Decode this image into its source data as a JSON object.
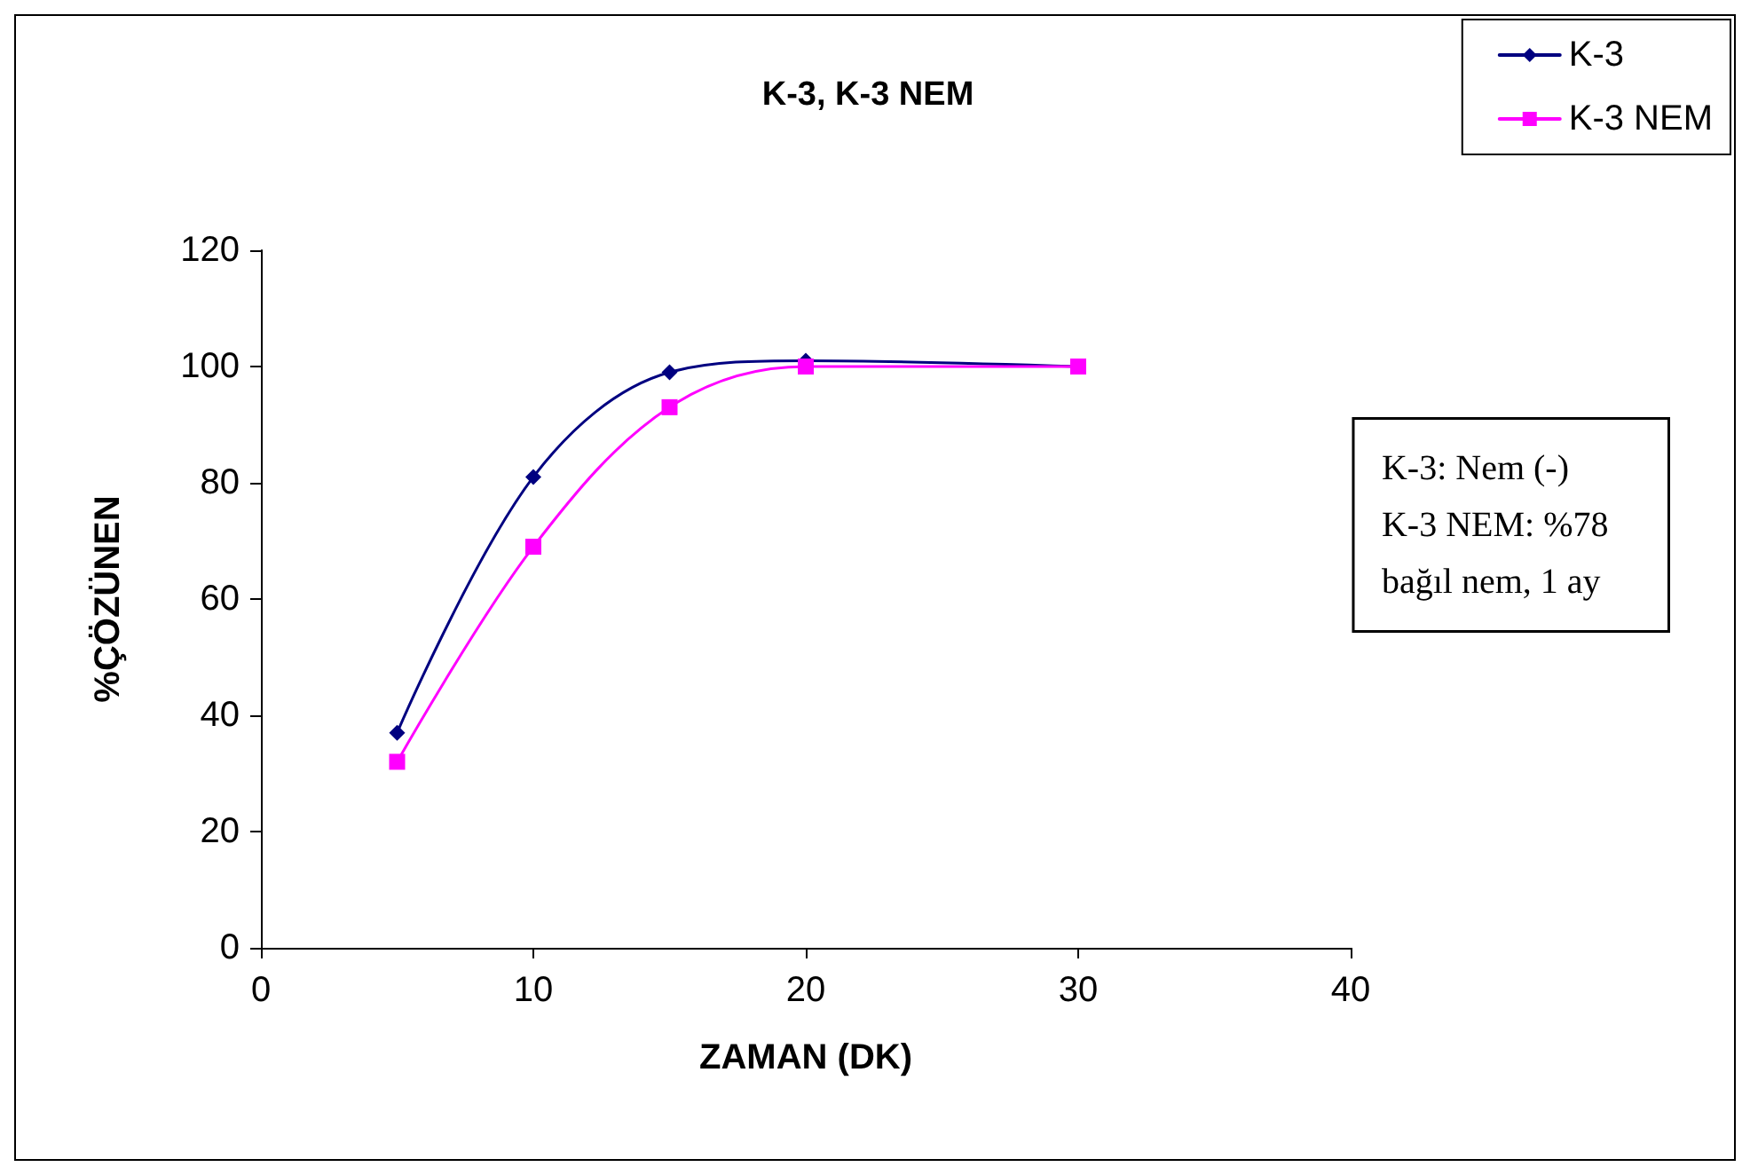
{
  "chart_data": {
    "type": "line",
    "title": "K-3, K-3 NEM",
    "xlabel": "ZAMAN (DK)",
    "ylabel": "%ÇÖZÜNEN",
    "x": [
      5,
      10,
      15,
      20,
      30
    ],
    "series": [
      {
        "name": "K-3",
        "color": "#000080",
        "marker": "diamond",
        "values": [
          37,
          81,
          99,
          101,
          100
        ]
      },
      {
        "name": "K-3 NEM",
        "color": "#ff00ff",
        "marker": "square",
        "values": [
          32,
          69,
          93,
          100,
          100
        ]
      }
    ],
    "xlim": [
      0,
      40
    ],
    "xticks": [
      0,
      10,
      20,
      30,
      40
    ],
    "ylim": [
      0,
      120
    ],
    "yticks": [
      0,
      20,
      40,
      60,
      80,
      100,
      120
    ],
    "grid": false,
    "legend": "top right",
    "line_style": "solid",
    "annotations": [
      "K-3: Nem (-)\nK-3 NEM: %78\nbağıl nem, 1 ay"
    ]
  }
}
